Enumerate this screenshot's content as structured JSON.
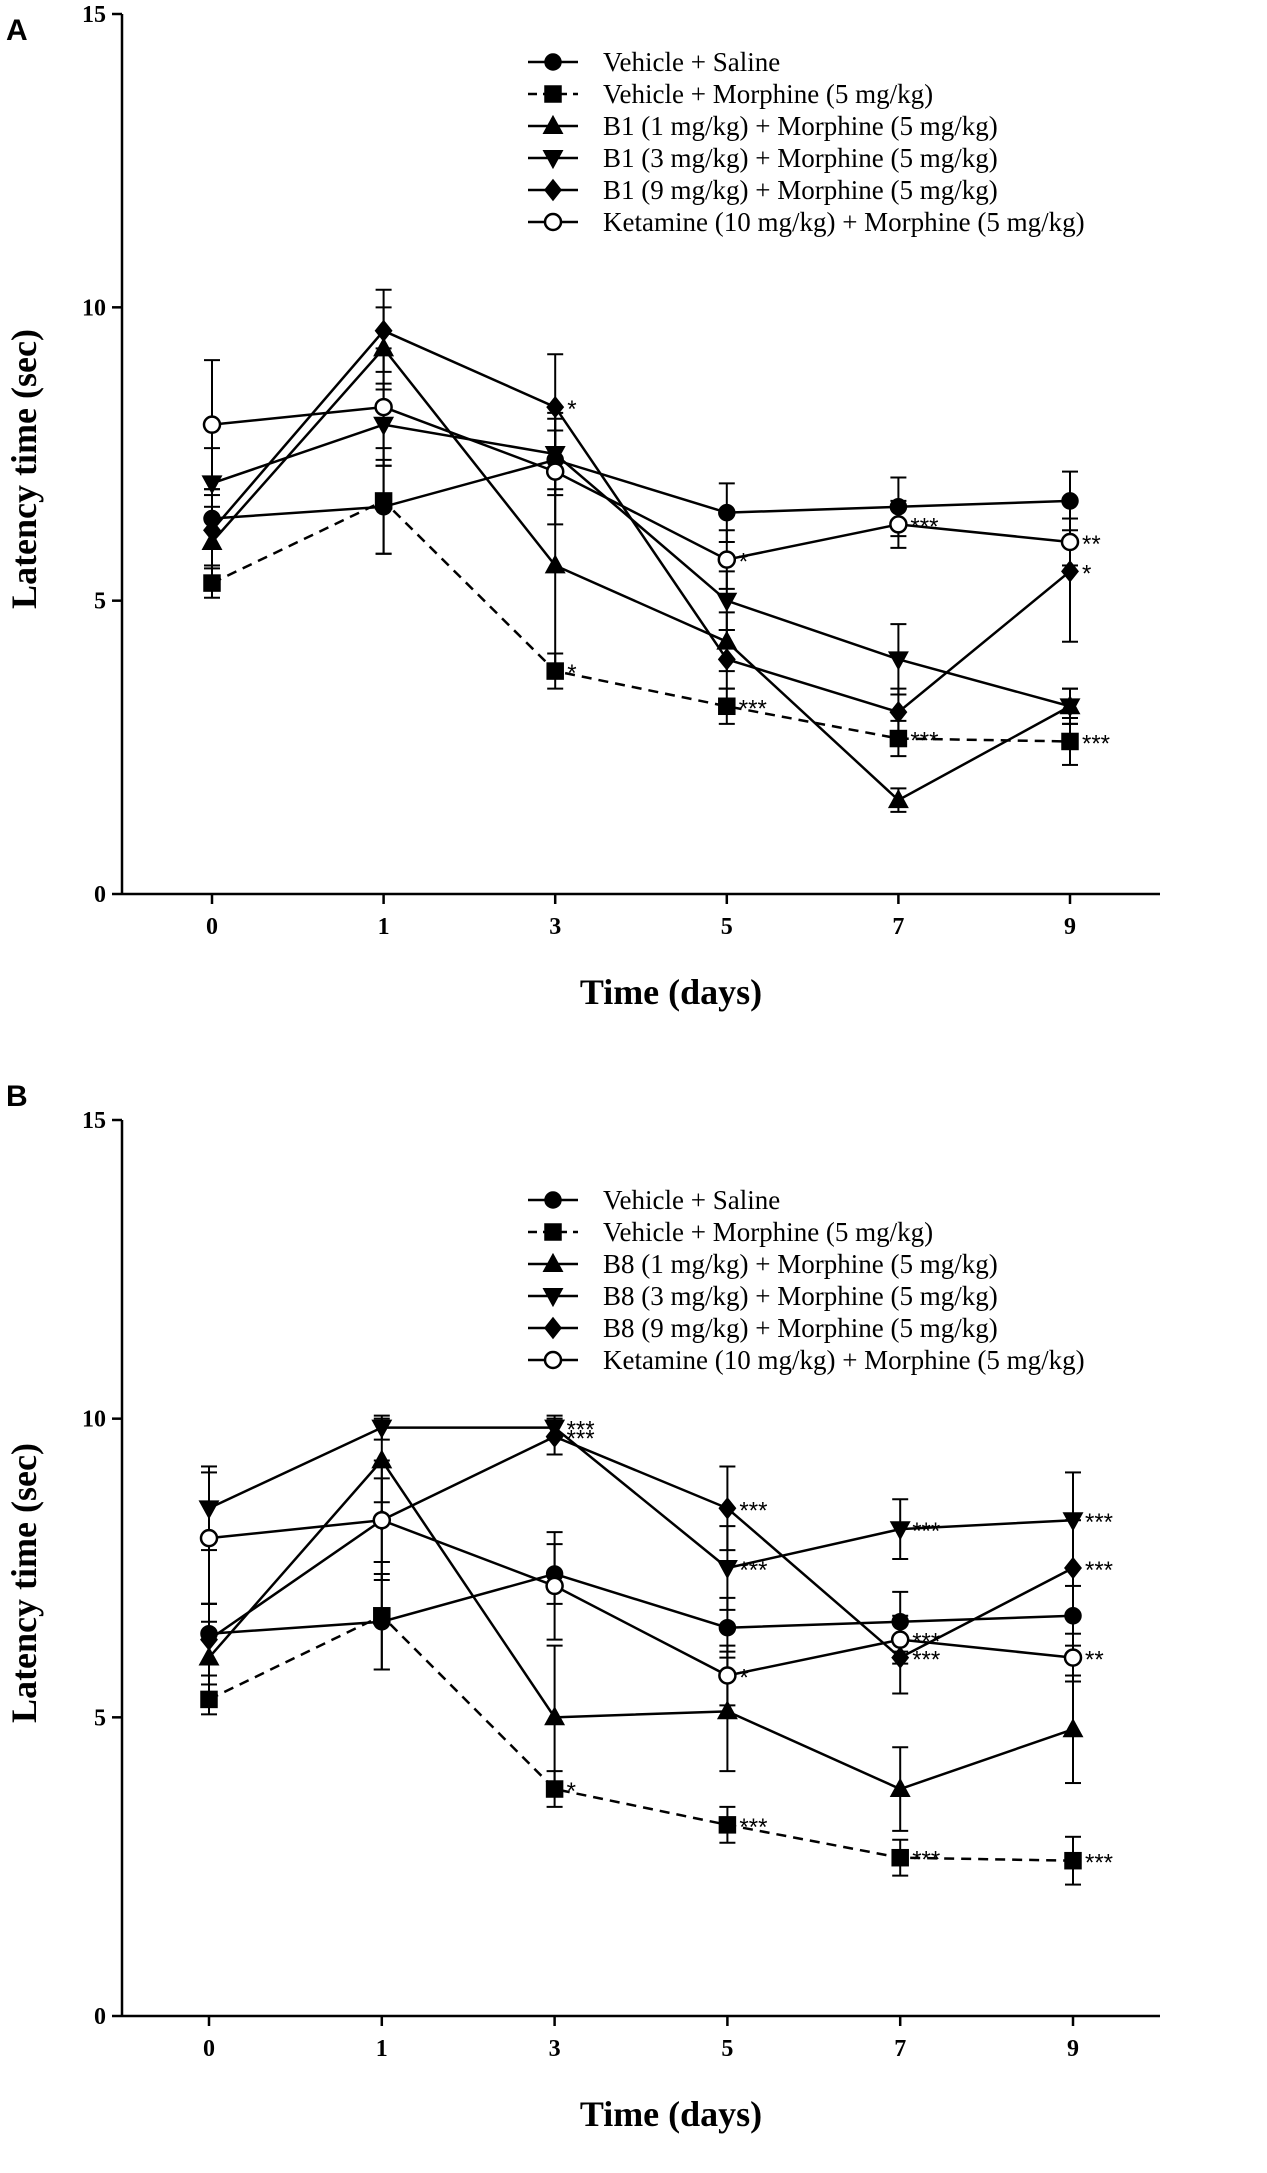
{
  "chart_data": [
    {
      "panel": "A",
      "type": "line",
      "xlabel": "Time (days)",
      "ylabel": "Latency time (sec)",
      "x": [
        0,
        1,
        3,
        5,
        7,
        9
      ],
      "x_tick_labels": [
        "0",
        "1",
        "3",
        "5",
        "7",
        "9"
      ],
      "ylim": [
        0,
        15
      ],
      "y_ticks": [
        0,
        5,
        10,
        15
      ],
      "y_tick_labels": [
        "0",
        "5",
        "10",
        "15"
      ],
      "legend_position": "top-right",
      "series": [
        {
          "name": "Vehicle + Saline",
          "marker": "circle",
          "dashed": false,
          "values": [
            6.4,
            6.6,
            7.4,
            6.5,
            6.6,
            6.7
          ],
          "errors": [
            0.5,
            0.8,
            0.5,
            0.5,
            0.5,
            0.5
          ],
          "sig": [
            "",
            "",
            "",
            "",
            "",
            ""
          ]
        },
        {
          "name": "Vehicle + Morphine (5 mg/kg)",
          "marker": "square",
          "dashed": true,
          "values": [
            5.3,
            6.7,
            3.8,
            3.2,
            2.65,
            2.6
          ],
          "errors": [
            0.25,
            0.9,
            0.3,
            0.3,
            0.3,
            0.4
          ],
          "sig": [
            "",
            "",
            "*",
            "***",
            "***",
            "***"
          ]
        },
        {
          "name": "B1 (1 mg/kg) + Morphine (5 mg/kg)",
          "marker": "triangle-up",
          "dashed": false,
          "values": [
            6.0,
            9.3,
            5.6,
            4.3,
            1.6,
            3.2
          ],
          "errors": [
            0.6,
            0.7,
            1.8,
            0.5,
            0.2,
            0.3
          ],
          "sig": [
            "",
            "",
            "",
            "",
            "",
            ""
          ]
        },
        {
          "name": "B1 (3 mg/kg) + Morphine (5 mg/kg)",
          "marker": "triangle-down",
          "dashed": false,
          "values": [
            7.0,
            8.0,
            7.5,
            5.0,
            4.0,
            3.2
          ],
          "errors": [
            0.6,
            0.7,
            0.7,
            0.5,
            0.6,
            0.3
          ],
          "sig": [
            "",
            "",
            "",
            "",
            "",
            ""
          ]
        },
        {
          "name": "B1 (9 mg/kg) + Morphine (5 mg/kg)",
          "marker": "diamond",
          "dashed": false,
          "values": [
            6.2,
            9.6,
            8.3,
            4.0,
            3.1,
            5.5
          ],
          "errors": [
            0.6,
            0.7,
            0.9,
            0.5,
            0.4,
            1.2
          ],
          "sig": [
            "",
            "",
            "*",
            "",
            "",
            "*"
          ]
        },
        {
          "name": "Ketamine (10 mg/kg) + Morphine (5 mg/kg)",
          "marker": "open-circle",
          "dashed": false,
          "values": [
            8.0,
            8.3,
            7.2,
            5.7,
            6.3,
            6.0
          ],
          "errors": [
            1.1,
            1.0,
            0.9,
            0.5,
            0.4,
            0.4
          ],
          "sig": [
            "",
            "",
            "",
            "*",
            "***",
            "**"
          ]
        }
      ]
    },
    {
      "panel": "B",
      "type": "line",
      "xlabel": "Time (days)",
      "ylabel": "Latency time (sec)",
      "x": [
        0,
        1,
        3,
        5,
        7,
        9
      ],
      "x_tick_labels": [
        "0",
        "1",
        "3",
        "5",
        "7",
        "9"
      ],
      "ylim": [
        0,
        15
      ],
      "y_ticks": [
        0,
        5,
        10,
        15
      ],
      "y_tick_labels": [
        "0",
        "5",
        "10",
        "15"
      ],
      "legend_position": "top-right",
      "series": [
        {
          "name": "Vehicle + Saline",
          "marker": "circle",
          "dashed": false,
          "values": [
            6.4,
            6.6,
            7.4,
            6.5,
            6.6,
            6.7
          ],
          "errors": [
            0.5,
            0.8,
            0.5,
            0.5,
            0.5,
            0.5
          ],
          "sig": [
            "",
            "",
            "",
            "",
            "",
            ""
          ]
        },
        {
          "name": "Vehicle + Morphine (5 mg/kg)",
          "marker": "square",
          "dashed": true,
          "values": [
            5.3,
            6.7,
            3.8,
            3.2,
            2.65,
            2.6
          ],
          "errors": [
            0.25,
            0.9,
            0.3,
            0.3,
            0.3,
            0.4
          ],
          "sig": [
            "",
            "",
            "*",
            "***",
            "***",
            "***"
          ]
        },
        {
          "name": "B8 (1 mg/kg) + Morphine (5 mg/kg)",
          "marker": "triangle-up",
          "dashed": false,
          "values": [
            6.0,
            9.3,
            5.0,
            5.1,
            3.8,
            4.8
          ],
          "errors": [
            0.6,
            0.7,
            1.2,
            1.0,
            0.7,
            0.9
          ],
          "sig": [
            "",
            "",
            "",
            "",
            "",
            ""
          ]
        },
        {
          "name": "B8 (3 mg/kg) + Morphine (5 mg/kg)",
          "marker": "triangle-down",
          "dashed": false,
          "values": [
            8.5,
            9.85,
            9.85,
            7.5,
            8.15,
            8.3
          ],
          "errors": [
            0.7,
            0.2,
            0.2,
            0.7,
            0.5,
            0.8
          ],
          "sig": [
            "",
            "",
            "***",
            "***",
            "***",
            "***"
          ]
        },
        {
          "name": "B8 (9 mg/kg) + Morphine (5 mg/kg)",
          "marker": "diamond",
          "dashed": false,
          "values": [
            6.3,
            8.3,
            9.7,
            8.5,
            6.0,
            7.5
          ],
          "errors": [
            0.6,
            0.7,
            0.3,
            0.7,
            0.6,
            0.8
          ],
          "sig": [
            "",
            "",
            "***",
            "***",
            "***",
            "***"
          ]
        },
        {
          "name": "Ketamine (10 mg/kg) + Morphine (5 mg/kg)",
          "marker": "open-circle",
          "dashed": false,
          "values": [
            8.0,
            8.3,
            7.2,
            5.7,
            6.3,
            6.0
          ],
          "errors": [
            1.1,
            1.0,
            0.9,
            0.5,
            0.4,
            0.4
          ],
          "sig": [
            "",
            "",
            "",
            "*",
            "***",
            "**"
          ]
        }
      ]
    }
  ]
}
